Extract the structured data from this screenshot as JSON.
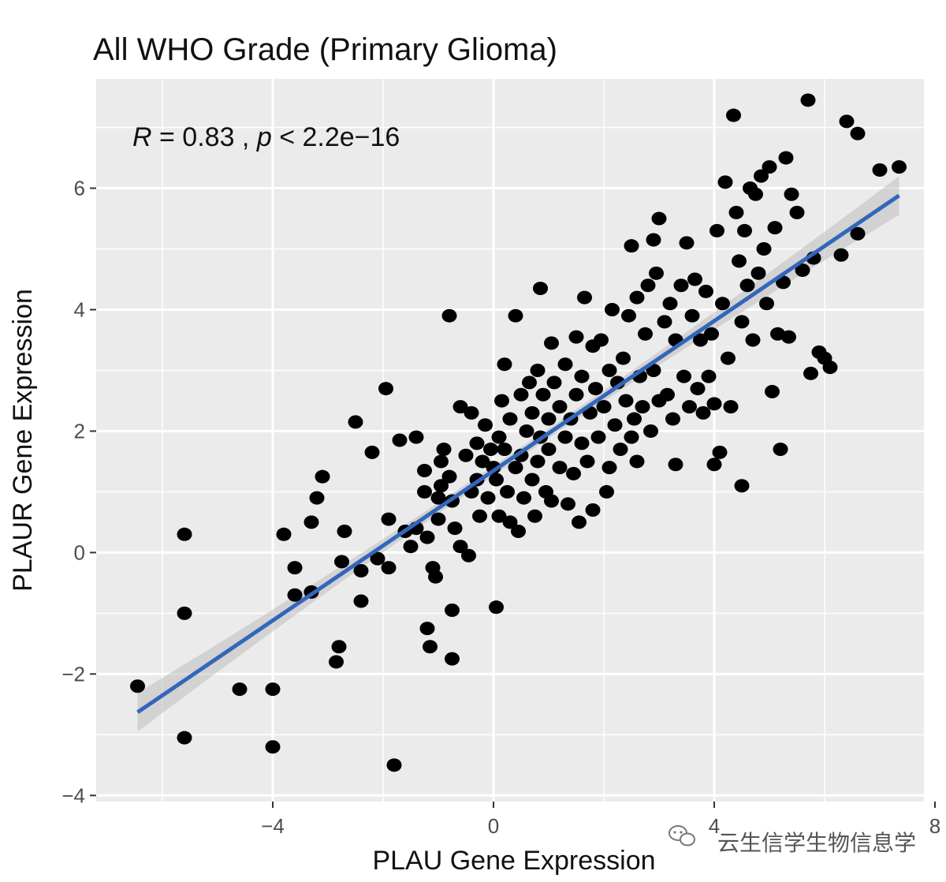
{
  "chart_data": {
    "type": "scatter",
    "title": "All WHO Grade (Primary Glioma)",
    "xlabel": "PLAU Gene Expression",
    "ylabel": "PLAUR Gene Expression",
    "xlim": [
      -7.2,
      7.8
    ],
    "ylim": [
      -4.1,
      7.8
    ],
    "x_ticks": [
      -4,
      0,
      4,
      8
    ],
    "y_ticks": [
      -4,
      -2,
      0,
      2,
      4,
      6
    ],
    "x_tick_labels": [
      "−4",
      "0",
      "4",
      "8"
    ],
    "y_tick_labels": [
      "−4",
      "−2",
      "0",
      "2",
      "4",
      "6"
    ],
    "annotation": {
      "r_label": "R",
      "r_text": " = 0.83 , ",
      "p_label": "p",
      "p_text": " < 2.2e−16"
    },
    "regression": {
      "x": [
        -6.45,
        7.35
      ],
      "y": [
        -2.63,
        5.88
      ],
      "ci_halfwidth_end": 0.32,
      "ci_halfwidth_mid": 0.08,
      "color": "#3366bb"
    },
    "grid": true,
    "background": "#ebebeb",
    "point_color": "#000000",
    "points": [
      [
        -6.45,
        -2.2
      ],
      [
        -5.6,
        0.3
      ],
      [
        -5.6,
        -1
      ],
      [
        -5.6,
        -3.05
      ],
      [
        -4.6,
        -2.25
      ],
      [
        -4,
        -2.25
      ],
      [
        -4,
        -3.2
      ],
      [
        -3.8,
        0.3
      ],
      [
        -3.6,
        -0.25
      ],
      [
        -3.6,
        -0.7
      ],
      [
        -3.3,
        0.5
      ],
      [
        -3.3,
        -0.65
      ],
      [
        -3.2,
        0.9
      ],
      [
        -3.1,
        1.25
      ],
      [
        -2.8,
        -1.55
      ],
      [
        -2.85,
        -1.8
      ],
      [
        -2.7,
        0.35
      ],
      [
        -2.75,
        -0.15
      ],
      [
        -2.5,
        2.15
      ],
      [
        -2.4,
        -0.3
      ],
      [
        -2.4,
        -0.8
      ],
      [
        -2.2,
        1.65
      ],
      [
        -2.1,
        -0.1
      ],
      [
        -1.95,
        2.7
      ],
      [
        -1.9,
        0.55
      ],
      [
        -1.9,
        -0.25
      ],
      [
        -1.8,
        -3.5
      ],
      [
        -1.7,
        1.85
      ],
      [
        -1.6,
        0.35
      ],
      [
        -1.5,
        0.1
      ],
      [
        -1.4,
        0.4
      ],
      [
        -1.4,
        1.9
      ],
      [
        -1.25,
        1.35
      ],
      [
        -1.25,
        1.0
      ],
      [
        -1.2,
        0.25
      ],
      [
        -1.2,
        -1.25
      ],
      [
        -1.15,
        -1.55
      ],
      [
        -1.1,
        -0.25
      ],
      [
        -1.05,
        -0.4
      ],
      [
        -1.0,
        0.55
      ],
      [
        -1.0,
        0.9
      ],
      [
        -0.95,
        1.5
      ],
      [
        -0.95,
        1.1
      ],
      [
        -0.9,
        1.7
      ],
      [
        -0.8,
        1.25
      ],
      [
        -0.8,
        3.9
      ],
      [
        -0.75,
        0.85
      ],
      [
        -0.75,
        -0.95
      ],
      [
        -0.75,
        -1.75
      ],
      [
        -0.7,
        0.4
      ],
      [
        -0.6,
        2.4
      ],
      [
        -0.6,
        0.1
      ],
      [
        -0.5,
        1.6
      ],
      [
        -0.45,
        -0.05
      ],
      [
        -0.4,
        1.0
      ],
      [
        -0.4,
        2.3
      ],
      [
        -0.3,
        1.8
      ],
      [
        -0.3,
        1.2
      ],
      [
        -0.25,
        0.6
      ],
      [
        -0.2,
        1.5
      ],
      [
        -0.15,
        2.1
      ],
      [
        -0.1,
        0.9
      ],
      [
        -0.05,
        1.7
      ],
      [
        0.0,
        1.4
      ],
      [
        0.05,
        1.2
      ],
      [
        0.05,
        -0.9
      ],
      [
        0.1,
        0.6
      ],
      [
        0.1,
        1.9
      ],
      [
        0.15,
        2.5
      ],
      [
        0.2,
        1.7
      ],
      [
        0.2,
        3.1
      ],
      [
        0.25,
        1.0
      ],
      [
        0.3,
        0.5
      ],
      [
        0.3,
        2.2
      ],
      [
        0.4,
        1.4
      ],
      [
        0.4,
        3.9
      ],
      [
        0.45,
        0.35
      ],
      [
        0.5,
        2.6
      ],
      [
        0.5,
        1.6
      ],
      [
        0.55,
        0.9
      ],
      [
        0.6,
        2.0
      ],
      [
        0.65,
        2.8
      ],
      [
        0.7,
        1.2
      ],
      [
        0.7,
        2.3
      ],
      [
        0.75,
        0.6
      ],
      [
        0.8,
        3.0
      ],
      [
        0.8,
        1.5
      ],
      [
        0.85,
        1.9
      ],
      [
        0.85,
        4.35
      ],
      [
        0.9,
        2.6
      ],
      [
        0.95,
        1.0
      ],
      [
        1.0,
        2.2
      ],
      [
        1.0,
        1.7
      ],
      [
        1.05,
        3.45
      ],
      [
        1.05,
        0.85
      ],
      [
        1.1,
        2.8
      ],
      [
        1.2,
        1.4
      ],
      [
        1.2,
        2.4
      ],
      [
        1.3,
        3.1
      ],
      [
        1.3,
        1.9
      ],
      [
        1.35,
        0.8
      ],
      [
        1.4,
        2.2
      ],
      [
        1.45,
        1.3
      ],
      [
        1.5,
        2.6
      ],
      [
        1.5,
        3.55
      ],
      [
        1.55,
        0.5
      ],
      [
        1.6,
        1.8
      ],
      [
        1.6,
        2.9
      ],
      [
        1.65,
        4.2
      ],
      [
        1.7,
        1.5
      ],
      [
        1.75,
        2.3
      ],
      [
        1.8,
        3.4
      ],
      [
        1.8,
        0.7
      ],
      [
        1.85,
        2.7
      ],
      [
        1.9,
        1.9
      ],
      [
        1.95,
        3.5
      ],
      [
        2.0,
        2.4
      ],
      [
        2.05,
        1.0
      ],
      [
        2.1,
        3.0
      ],
      [
        2.1,
        1.4
      ],
      [
        2.15,
        4.0
      ],
      [
        2.2,
        2.1
      ],
      [
        2.25,
        2.8
      ],
      [
        2.3,
        1.7
      ],
      [
        2.35,
        3.2
      ],
      [
        2.4,
        2.5
      ],
      [
        2.45,
        3.9
      ],
      [
        2.5,
        1.9
      ],
      [
        2.5,
        5.05
      ],
      [
        2.55,
        2.2
      ],
      [
        2.6,
        1.5
      ],
      [
        2.6,
        4.2
      ],
      [
        2.65,
        2.9
      ],
      [
        2.7,
        2.4
      ],
      [
        2.75,
        3.6
      ],
      [
        2.8,
        4.4
      ],
      [
        2.85,
        2.0
      ],
      [
        2.9,
        5.15
      ],
      [
        2.9,
        3.0
      ],
      [
        2.95,
        4.6
      ],
      [
        3.0,
        2.5
      ],
      [
        3.0,
        5.5
      ],
      [
        3.1,
        3.8
      ],
      [
        3.15,
        2.6
      ],
      [
        3.2,
        4.1
      ],
      [
        3.25,
        2.2
      ],
      [
        3.3,
        3.5
      ],
      [
        3.3,
        1.45
      ],
      [
        3.4,
        4.4
      ],
      [
        3.45,
        2.9
      ],
      [
        3.5,
        5.1
      ],
      [
        3.55,
        2.4
      ],
      [
        3.6,
        3.9
      ],
      [
        3.65,
        4.5
      ],
      [
        3.7,
        2.7
      ],
      [
        3.75,
        3.5
      ],
      [
        3.8,
        2.3
      ],
      [
        3.85,
        4.3
      ],
      [
        3.9,
        2.9
      ],
      [
        3.95,
        3.6
      ],
      [
        4.0,
        1.45
      ],
      [
        4.0,
        2.45
      ],
      [
        4.05,
        5.3
      ],
      [
        4.1,
        1.65
      ],
      [
        4.15,
        4.1
      ],
      [
        4.2,
        6.1
      ],
      [
        4.25,
        3.2
      ],
      [
        4.3,
        2.4
      ],
      [
        4.35,
        7.2
      ],
      [
        4.4,
        5.6
      ],
      [
        4.45,
        4.8
      ],
      [
        4.5,
        3.8
      ],
      [
        4.5,
        1.1
      ],
      [
        4.55,
        5.3
      ],
      [
        4.6,
        4.4
      ],
      [
        4.65,
        6.0
      ],
      [
        4.7,
        3.5
      ],
      [
        4.75,
        5.9
      ],
      [
        4.8,
        4.6
      ],
      [
        4.85,
        6.2
      ],
      [
        4.9,
        5.0
      ],
      [
        4.95,
        4.1
      ],
      [
        5.0,
        6.35
      ],
      [
        5.05,
        2.65
      ],
      [
        5.1,
        5.35
      ],
      [
        5.15,
        3.6
      ],
      [
        5.2,
        1.7
      ],
      [
        5.25,
        4.45
      ],
      [
        5.3,
        6.5
      ],
      [
        5.35,
        3.55
      ],
      [
        5.4,
        5.9
      ],
      [
        5.5,
        5.6
      ],
      [
        5.6,
        4.65
      ],
      [
        5.7,
        7.45
      ],
      [
        5.75,
        2.95
      ],
      [
        5.8,
        4.85
      ],
      [
        5.9,
        3.3
      ],
      [
        6.0,
        3.2
      ],
      [
        6.1,
        3.05
      ],
      [
        6.3,
        4.9
      ],
      [
        6.4,
        7.1
      ],
      [
        6.6,
        5.25
      ],
      [
        6.6,
        6.9
      ],
      [
        7.0,
        6.3
      ],
      [
        7.35,
        6.35
      ]
    ]
  },
  "watermark": {
    "text": "云生信学生物信息学",
    "icon": "wechat-icon"
  }
}
